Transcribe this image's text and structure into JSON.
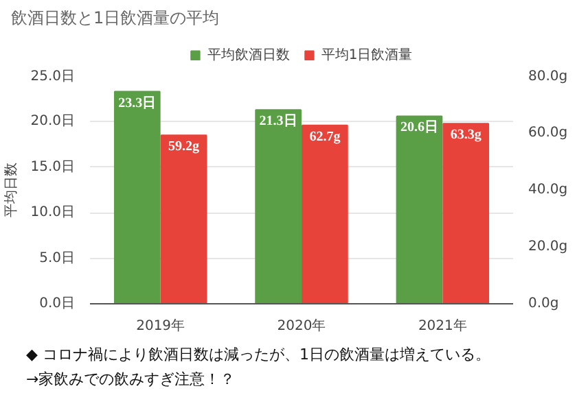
{
  "chart_data": {
    "type": "bar",
    "title": "飲酒日数と1日飲酒量の平均",
    "ylabel": "平均日数",
    "categories": [
      "2019年",
      "2020年",
      "2021年"
    ],
    "series": [
      {
        "name": "平均飲酒日数",
        "color": "#5a9e46",
        "values": [
          23.3,
          21.3,
          20.6
        ],
        "value_labels": [
          "23.3日",
          "21.3日",
          "20.6日"
        ]
      },
      {
        "name": "平均1日飲酒量",
        "color": "#e8433a",
        "values": [
          59.2,
          62.7,
          63.3
        ],
        "value_labels": [
          "59.2g",
          "62.7g",
          "63.3g"
        ],
        "axis": "y2"
      }
    ],
    "ylim": [
      0,
      25
    ],
    "yticks": [
      {
        "value": 0,
        "label": "0.0日"
      },
      {
        "value": 5,
        "label": "5.0日"
      },
      {
        "value": 10,
        "label": "10.0日"
      },
      {
        "value": 15,
        "label": "15.0日"
      },
      {
        "value": 20,
        "label": "20.0日"
      },
      {
        "value": 25,
        "label": "25.0日"
      }
    ],
    "y2lim": [
      0,
      80
    ],
    "y2ticks": [
      {
        "value": 0,
        "label": "0.0g"
      },
      {
        "value": 20,
        "label": "20.0g"
      },
      {
        "value": 40,
        "label": "40.0g"
      },
      {
        "value": 60,
        "label": "60.0g"
      },
      {
        "value": 80,
        "label": "80.0g"
      }
    ],
    "grid": "y",
    "legend": "top",
    "annotations": [
      "◆ コロナ禍により飲酒日数は減ったが、1日の飲酒量は増えている。",
      "→家飲みでの飲みすぎ注意！？"
    ]
  }
}
